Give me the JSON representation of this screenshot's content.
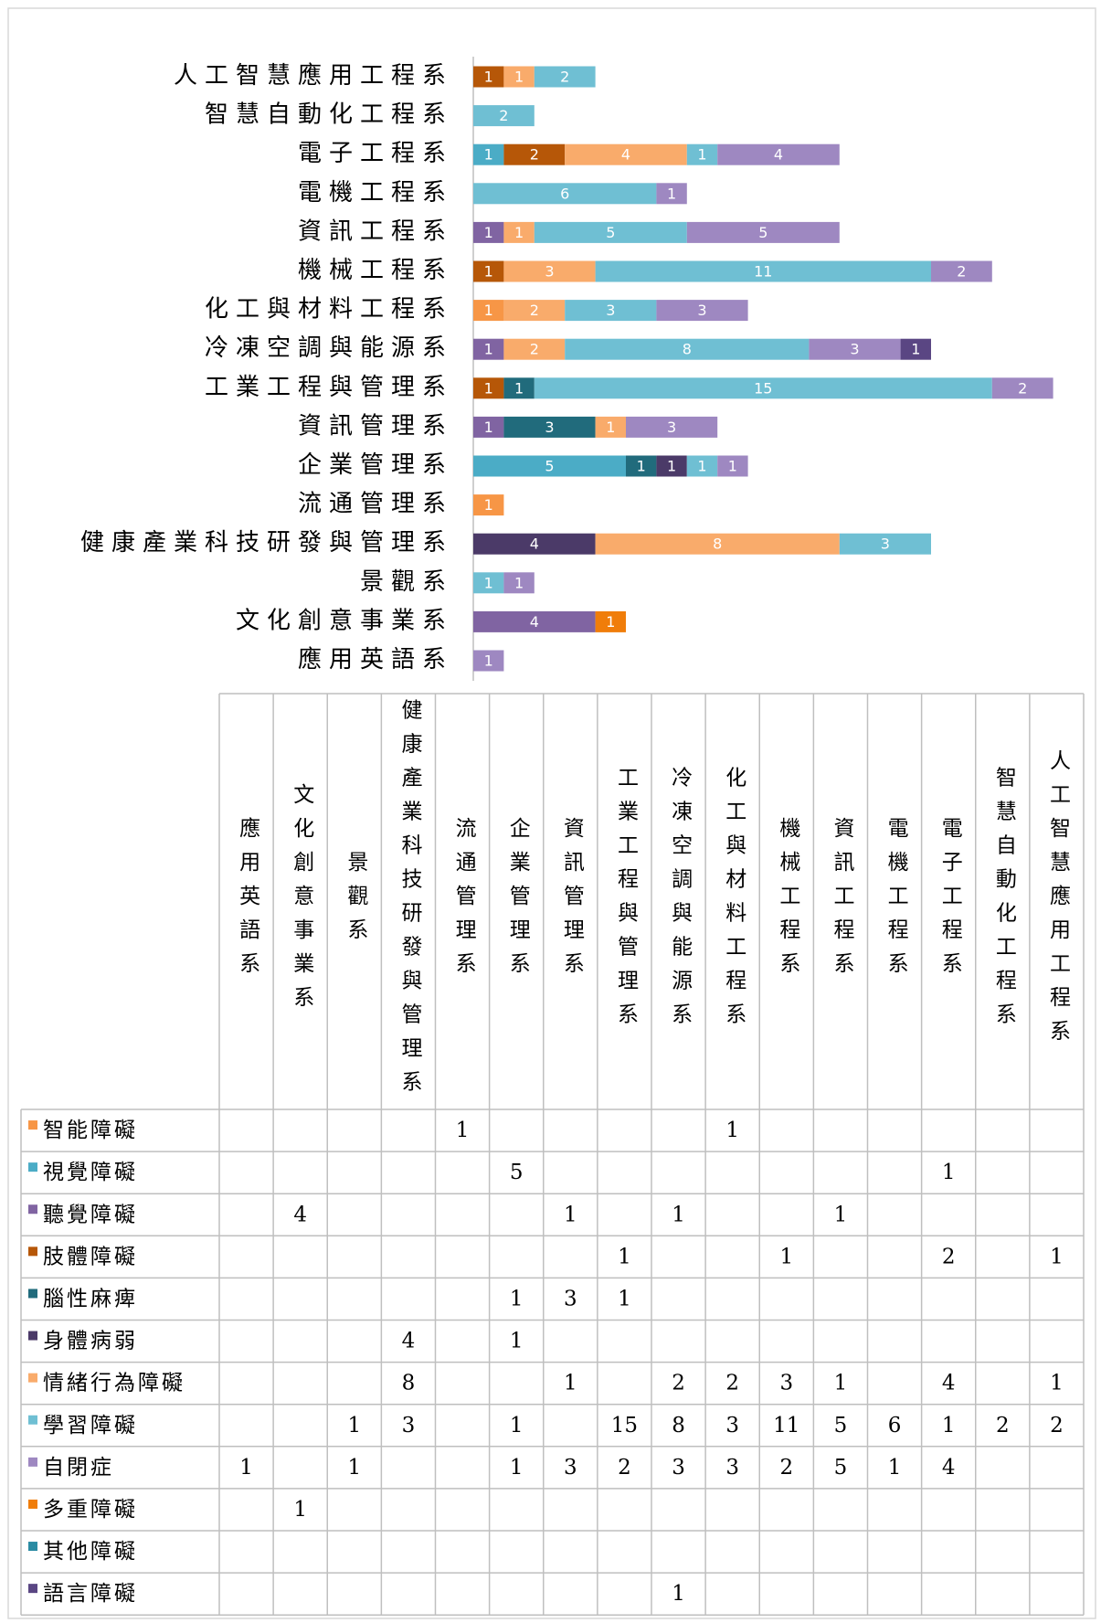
{
  "chart_data": {
    "type": "stacked_bar_horizontal",
    "categories": [
      "應用英語系",
      "文化創意事業系",
      "景觀系",
      "健康產業科技研發與管理系",
      "流通管理系",
      "企業管理系",
      "資訊管理系",
      "工業工程與管理系",
      "冷凍空調與能源系",
      "化工與材料工程系",
      "機械工程系",
      "資訊工程系",
      "電機工程系",
      "電子工程系",
      "智慧自動化工程系",
      "人工智慧應用工程系"
    ],
    "xlim": [
      0,
      20
    ],
    "series": [
      {
        "name": "智能障礙",
        "color": "#f79646",
        "values": [
          null,
          null,
          null,
          null,
          1,
          null,
          null,
          null,
          null,
          1,
          null,
          null,
          null,
          null,
          null,
          null
        ]
      },
      {
        "name": "視覺障礙",
        "color": "#4bacc6",
        "values": [
          null,
          null,
          null,
          null,
          null,
          5,
          null,
          null,
          null,
          null,
          null,
          null,
          null,
          1,
          null,
          null
        ]
      },
      {
        "name": "聽覺障礙",
        "color": "#8064a2",
        "values": [
          null,
          4,
          null,
          null,
          null,
          null,
          1,
          null,
          1,
          null,
          null,
          1,
          null,
          null,
          null,
          null
        ]
      },
      {
        "name": "肢體障礙",
        "color": "#b65708",
        "values": [
          null,
          null,
          null,
          null,
          null,
          null,
          null,
          1,
          null,
          null,
          1,
          null,
          null,
          2,
          null,
          1
        ]
      },
      {
        "name": "腦性麻痺",
        "color": "#216b7c",
        "values": [
          null,
          null,
          null,
          null,
          null,
          1,
          3,
          1,
          null,
          null,
          null,
          null,
          null,
          null,
          null,
          null
        ]
      },
      {
        "name": "身體病弱",
        "color": "#4b3a68",
        "values": [
          null,
          null,
          null,
          4,
          null,
          1,
          null,
          null,
          null,
          null,
          null,
          null,
          null,
          null,
          null,
          null
        ]
      },
      {
        "name": "情緒行為障礙",
        "color": "#f9ab6b",
        "values": [
          null,
          null,
          null,
          8,
          null,
          null,
          1,
          null,
          2,
          2,
          3,
          1,
          null,
          4,
          null,
          1
        ]
      },
      {
        "name": "學習障礙",
        "color": "#6fbfd3",
        "values": [
          null,
          null,
          1,
          3,
          null,
          1,
          null,
          15,
          8,
          3,
          11,
          5,
          6,
          1,
          2,
          2
        ]
      },
      {
        "name": "自閉症",
        "color": "#9e88c1",
        "values": [
          1,
          null,
          1,
          null,
          null,
          1,
          3,
          2,
          3,
          3,
          2,
          5,
          1,
          4,
          null,
          null
        ]
      },
      {
        "name": "多重障礙",
        "color": "#f07d0a",
        "values": [
          null,
          1,
          null,
          null,
          null,
          null,
          null,
          null,
          null,
          null,
          null,
          null,
          null,
          null,
          null,
          null
        ]
      },
      {
        "name": "其他障礙",
        "color": "#2a8ba3",
        "values": [
          null,
          null,
          null,
          null,
          null,
          null,
          null,
          null,
          null,
          null,
          null,
          null,
          null,
          null,
          null,
          null
        ]
      },
      {
        "name": "語言障礙",
        "color": "#5a4683",
        "values": [
          null,
          null,
          null,
          null,
          null,
          null,
          null,
          null,
          1,
          null,
          null,
          null,
          null,
          null,
          null,
          null
        ]
      }
    ]
  }
}
